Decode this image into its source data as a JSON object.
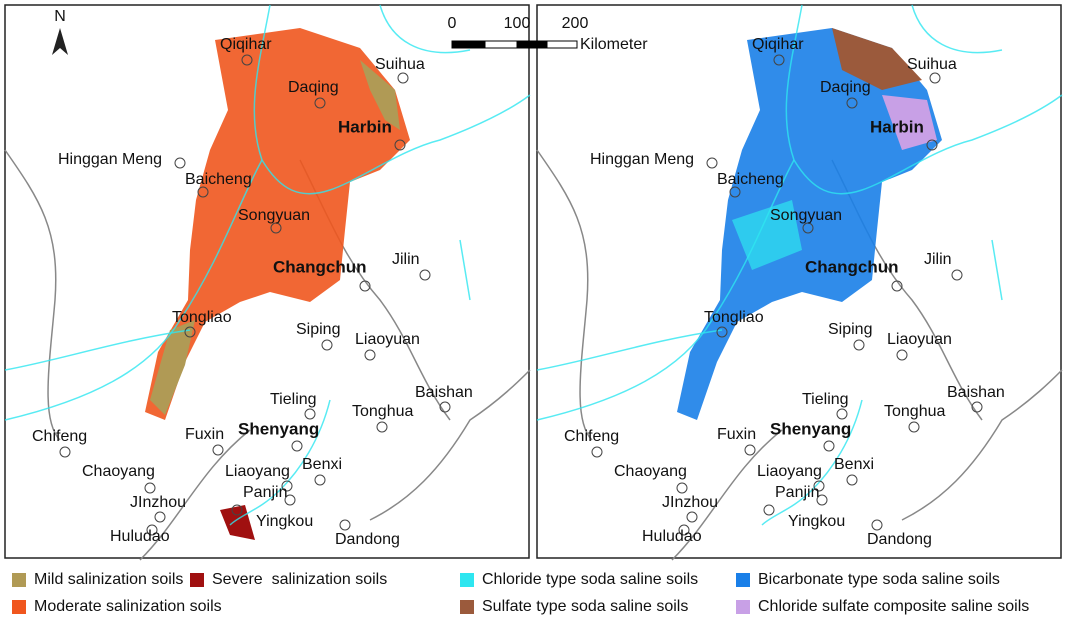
{
  "map": {
    "north": "N",
    "scale": {
      "ticks": [
        "0",
        "100",
        "200"
      ],
      "unit": "Kilometer"
    },
    "cities": [
      {
        "name": "Qiqihar"
      },
      {
        "name": "Suihua"
      },
      {
        "name": "Daqing"
      },
      {
        "name": "Harbin",
        "bold": true
      },
      {
        "name": "Hinggan Meng"
      },
      {
        "name": "Baicheng"
      },
      {
        "name": "Songyuan"
      },
      {
        "name": "Changchun",
        "bold": true
      },
      {
        "name": "Jilin"
      },
      {
        "name": "Tongliao"
      },
      {
        "name": "Siping"
      },
      {
        "name": "Liaoyuan"
      },
      {
        "name": "Baishan"
      },
      {
        "name": "Tieling"
      },
      {
        "name": "Tonghua"
      },
      {
        "name": "Chifeng"
      },
      {
        "name": "Fuxin"
      },
      {
        "name": "Shenyang",
        "bold": true
      },
      {
        "name": "Chaoyang"
      },
      {
        "name": "Liaoyang"
      },
      {
        "name": "Benxi"
      },
      {
        "name": "JInzhou"
      },
      {
        "name": "Panjin"
      },
      {
        "name": "Huludao"
      },
      {
        "name": "Yingkou"
      },
      {
        "name": "Dandong"
      }
    ]
  },
  "legend": {
    "items": [
      {
        "label": "Mild salinization soils",
        "color": "#b09a55"
      },
      {
        "label": "Severe  salinization soils",
        "color": "#a01010"
      },
      {
        "label": "Chloride type soda saline soils",
        "color": "#2ee6f0"
      },
      {
        "label": "Bicarbonate type soda saline soils",
        "color": "#1a7fe8"
      },
      {
        "label": "Moderate salinization soils",
        "color": "#f0561e"
      },
      {
        "label": "Sulfate type soda saline soils",
        "color": "#9b5a3c"
      },
      {
        "label": "Chloride sulfate composite saline soils",
        "color": "#c8a0e6"
      }
    ]
  }
}
